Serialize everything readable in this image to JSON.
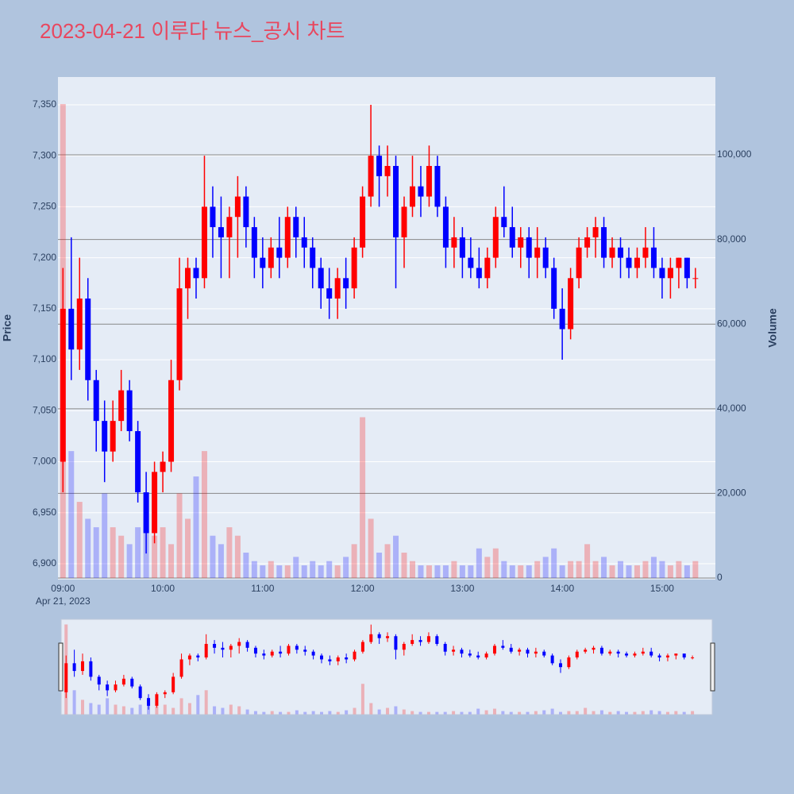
{
  "chart_data": {
    "type": "candlestick",
    "title": "2023-04-21 이루다 뉴스_공시 차트",
    "ylabel": "Price",
    "y2label": "Volume",
    "x_date_label": "Apr 21, 2023",
    "increasing_color": "#ff0000",
    "decreasing_color": "#0000ff",
    "grid": true,
    "rangeslider": true,
    "xlim": [
      "2023-04-21 08:57",
      "2023-04-21 15:32"
    ],
    "xticks": [
      {
        "value": "2023-04-21 09:00",
        "label": "09:00"
      },
      {
        "value": "2023-04-21 10:00",
        "label": "10:00"
      },
      {
        "value": "2023-04-21 11:00",
        "label": "11:00"
      },
      {
        "value": "2023-04-21 12:00",
        "label": "12:00"
      },
      {
        "value": "2023-04-21 13:00",
        "label": "13:00"
      },
      {
        "value": "2023-04-21 14:00",
        "label": "14:00"
      },
      {
        "value": "2023-04-21 15:00",
        "label": "15:00"
      }
    ],
    "ylim": [
      6884.4,
      7377.2
    ],
    "yticks": [
      {
        "value": 6900,
        "label": "6,900"
      },
      {
        "value": 6950,
        "label": "6,950"
      },
      {
        "value": 7000,
        "label": "7,000"
      },
      {
        "value": 7050,
        "label": "7,050"
      },
      {
        "value": 7100,
        "label": "7,100"
      },
      {
        "value": 7150,
        "label": "7,150"
      },
      {
        "value": 7200,
        "label": "7,200"
      },
      {
        "value": 7250,
        "label": "7,250"
      },
      {
        "value": 7300,
        "label": "7,300"
      },
      {
        "value": 7350,
        "label": "7,350"
      }
    ],
    "y2lim": [
      -375,
      118400
    ],
    "y2ticks": [
      0,
      {
        "value": 20000,
        "label": "20,000"
      },
      {
        "value": 40000,
        "label": "40,000"
      },
      {
        "value": 60000,
        "label": "60,000"
      },
      {
        "value": 80000,
        "label": "80,000"
      },
      {
        "value": 100000,
        "label": "100,000"
      }
    ],
    "x": [
      "2023-04-21 09:00",
      "2023-04-21 09:05",
      "2023-04-21 09:10",
      "2023-04-21 09:15",
      "2023-04-21 09:20",
      "2023-04-21 09:25",
      "2023-04-21 09:30",
      "2023-04-21 09:35",
      "2023-04-21 09:40",
      "2023-04-21 09:45",
      "2023-04-21 09:50",
      "2023-04-21 09:55",
      "2023-04-21 10:00",
      "2023-04-21 10:05",
      "2023-04-21 10:10",
      "2023-04-21 10:15",
      "2023-04-21 10:20",
      "2023-04-21 10:25",
      "2023-04-21 10:30",
      "2023-04-21 10:35",
      "2023-04-21 10:40",
      "2023-04-21 10:45",
      "2023-04-21 10:50",
      "2023-04-21 10:55",
      "2023-04-21 11:00",
      "2023-04-21 11:05",
      "2023-04-21 11:10",
      "2023-04-21 11:15",
      "2023-04-21 11:20",
      "2023-04-21 11:25",
      "2023-04-21 11:30",
      "2023-04-21 11:35",
      "2023-04-21 11:40",
      "2023-04-21 11:45",
      "2023-04-21 11:50",
      "2023-04-21 11:55",
      "2023-04-21 12:00",
      "2023-04-21 12:05",
      "2023-04-21 12:10",
      "2023-04-21 12:15",
      "2023-04-21 12:20",
      "2023-04-21 12:25",
      "2023-04-21 12:30",
      "2023-04-21 12:35",
      "2023-04-21 12:40",
      "2023-04-21 12:45",
      "2023-04-21 12:50",
      "2023-04-21 12:55",
      "2023-04-21 13:00",
      "2023-04-21 13:05",
      "2023-04-21 13:10",
      "2023-04-21 13:15",
      "2023-04-21 13:20",
      "2023-04-21 13:25",
      "2023-04-21 13:30",
      "2023-04-21 13:35",
      "2023-04-21 13:40",
      "2023-04-21 13:45",
      "2023-04-21 13:50",
      "2023-04-21 13:55",
      "2023-04-21 14:00",
      "2023-04-21 14:05",
      "2023-04-21 14:10",
      "2023-04-21 14:15",
      "2023-04-21 14:20",
      "2023-04-21 14:25",
      "2023-04-21 14:30",
      "2023-04-21 14:35",
      "2023-04-21 14:40",
      "2023-04-21 14:45",
      "2023-04-21 14:50",
      "2023-04-21 14:55",
      "2023-04-21 15:00",
      "2023-04-21 15:05",
      "2023-04-21 15:10",
      "2023-04-21 15:15",
      "2023-04-21 15:20"
    ],
    "open": [
      7000,
      7150,
      7110,
      7160,
      7080,
      7040,
      7010,
      7040,
      7070,
      7030,
      6970,
      6930,
      6990,
      7000,
      7080,
      7170,
      7190,
      7180,
      7250,
      7230,
      7220,
      7240,
      7260,
      7230,
      7200,
      7190,
      7210,
      7200,
      7240,
      7220,
      7210,
      7190,
      7170,
      7160,
      7180,
      7170,
      7210,
      7260,
      7300,
      7280,
      7290,
      7220,
      7250,
      7270,
      7260,
      7290,
      7250,
      7210,
      7220,
      7200,
      7190,
      7180,
      7200,
      7240,
      7230,
      7210,
      7220,
      7200,
      7210,
      7190,
      7150,
      7130,
      7180,
      7210,
      7220,
      7230,
      7200,
      7210,
      7200,
      7190,
      7200,
      7210,
      7190,
      7180,
      7190,
      7200,
      7180
    ],
    "high": [
      7190,
      7220,
      7200,
      7180,
      7090,
      7060,
      7060,
      7090,
      7080,
      7040,
      6990,
      7000,
      7010,
      7100,
      7200,
      7200,
      7200,
      7300,
      7270,
      7260,
      7250,
      7280,
      7270,
      7240,
      7220,
      7220,
      7240,
      7250,
      7250,
      7240,
      7220,
      7200,
      7190,
      7190,
      7200,
      7220,
      7270,
      7350,
      7310,
      7310,
      7300,
      7260,
      7300,
      7290,
      7310,
      7300,
      7260,
      7240,
      7230,
      7220,
      7210,
      7210,
      7250,
      7270,
      7250,
      7230,
      7230,
      7230,
      7220,
      7200,
      7170,
      7190,
      7220,
      7230,
      7240,
      7240,
      7220,
      7220,
      7210,
      7210,
      7230,
      7230,
      7200,
      7200,
      7200,
      7200,
      7190
    ],
    "low": [
      6970,
      7080,
      7090,
      7060,
      7010,
      6980,
      7000,
      7030,
      7020,
      6960,
      6910,
      6920,
      6970,
      6990,
      7070,
      7140,
      7160,
      7170,
      7200,
      7180,
      7180,
      7200,
      7210,
      7180,
      7170,
      7180,
      7180,
      7190,
      7200,
      7190,
      7170,
      7150,
      7140,
      7140,
      7150,
      7160,
      7200,
      7250,
      7250,
      7260,
      7170,
      7190,
      7240,
      7240,
      7250,
      7240,
      7190,
      7190,
      7180,
      7180,
      7170,
      7170,
      7190,
      7220,
      7200,
      7190,
      7180,
      7180,
      7180,
      7140,
      7100,
      7120,
      7170,
      7200,
      7200,
      7190,
      7190,
      7180,
      7180,
      7180,
      7190,
      7180,
      7160,
      7160,
      7170,
      7170,
      7170
    ],
    "close": [
      7150,
      7110,
      7160,
      7080,
      7040,
      7010,
      7040,
      7070,
      7030,
      6970,
      6930,
      6990,
      7000,
      7080,
      7170,
      7190,
      7180,
      7250,
      7230,
      7220,
      7240,
      7260,
      7230,
      7200,
      7190,
      7210,
      7200,
      7240,
      7220,
      7210,
      7190,
      7170,
      7160,
      7180,
      7170,
      7210,
      7260,
      7300,
      7280,
      7290,
      7220,
      7250,
      7270,
      7260,
      7290,
      7250,
      7210,
      7220,
      7200,
      7190,
      7180,
      7200,
      7240,
      7230,
      7210,
      7220,
      7200,
      7210,
      7190,
      7150,
      7130,
      7180,
      7210,
      7220,
      7230,
      7200,
      7210,
      7200,
      7190,
      7200,
      7210,
      7190,
      7180,
      7190,
      7200,
      7180,
      7180
    ],
    "volume": [
      112000,
      30000,
      18000,
      14000,
      12000,
      20000,
      12000,
      10000,
      8000,
      12000,
      20000,
      10000,
      12000,
      8000,
      20000,
      14000,
      24000,
      30000,
      10000,
      8000,
      12000,
      10000,
      6000,
      4000,
      3000,
      4000,
      3000,
      3000,
      5000,
      3000,
      4000,
      3000,
      4000,
      3000,
      5000,
      8000,
      38000,
      14000,
      6000,
      8000,
      10000,
      6000,
      4000,
      3000,
      3000,
      3000,
      3000,
      4000,
      3000,
      3000,
      7000,
      5000,
      7000,
      4000,
      3000,
      3000,
      3000,
      4000,
      5000,
      7000,
      3000,
      4000,
      4000,
      8000,
      4000,
      5000,
      3000,
      4000,
      3000,
      3000,
      4000,
      5000,
      4000,
      3000,
      4000,
      3000,
      4000
    ]
  }
}
